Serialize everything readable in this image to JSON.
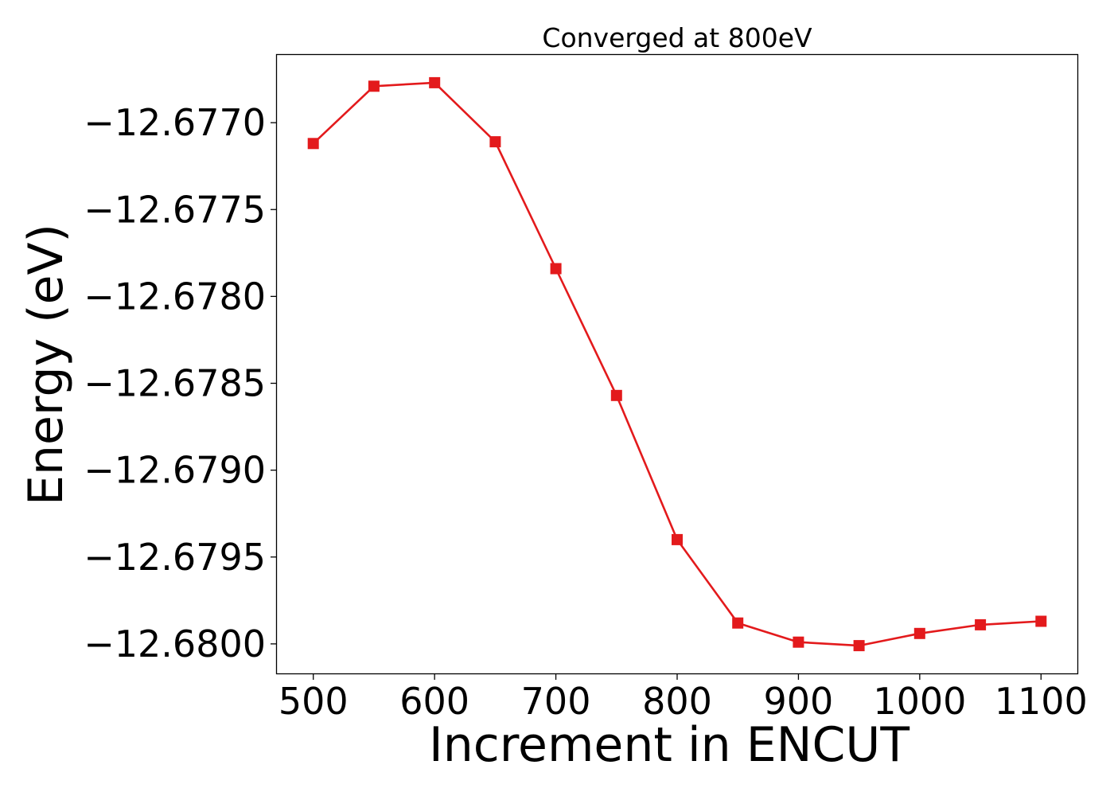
{
  "chart_data": {
    "type": "line",
    "title": "Converged at 800eV",
    "xlabel": "Increment in ENCUT",
    "ylabel": "Energy (eV)",
    "xlim": [
      470,
      1130
    ],
    "ylim": [
      -12.68017,
      -12.67661
    ],
    "xticks": [
      500,
      600,
      700,
      800,
      900,
      1000,
      1100
    ],
    "yticks": [
      -12.677,
      -12.6775,
      -12.678,
      -12.6785,
      -12.679,
      -12.6795,
      -12.68
    ],
    "ytick_labels": [
      "−12.6770",
      "−12.6775",
      "−12.6780",
      "−12.6785",
      "−12.6790",
      "−12.6795",
      "−12.6800"
    ],
    "grid": false,
    "series": [
      {
        "color": "#e31a1c",
        "marker": "square",
        "x": [
          500,
          550,
          600,
          650,
          700,
          750,
          800,
          850,
          900,
          950,
          1000,
          1050,
          1100
        ],
        "y": [
          -12.67712,
          -12.67679,
          -12.67677,
          -12.67711,
          -12.67784,
          -12.67857,
          -12.6794,
          -12.67988,
          -12.67999,
          -12.68001,
          -12.67994,
          -12.67989,
          -12.67987
        ]
      }
    ]
  }
}
